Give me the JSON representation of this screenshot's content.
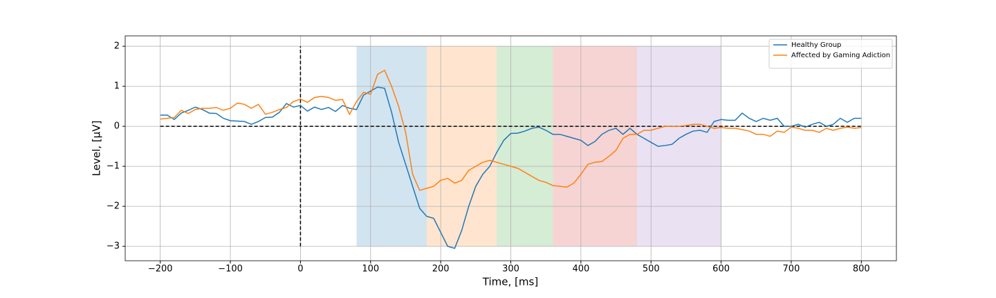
{
  "chart_data": {
    "type": "line",
    "xlabel": "Time, [ms]",
    "ylabel": "Level, [μV]",
    "xlim": [
      -250,
      850
    ],
    "ylim": [
      -3.36,
      2.26
    ],
    "xticks": [
      {
        "value": -200,
        "label": "−200"
      },
      {
        "value": -100,
        "label": "−100"
      },
      0,
      100,
      200,
      300,
      400,
      500,
      600,
      700,
      800
    ],
    "yticks": [
      {
        "value": -3,
        "label": "−3"
      },
      {
        "value": -2,
        "label": "−2"
      },
      {
        "value": -1,
        "label": "−1"
      },
      0,
      1,
      2
    ],
    "grid": true,
    "legend": "upper right",
    "band_ylim": [
      -3,
      2
    ],
    "bands": [
      {
        "from": 80,
        "to": 180,
        "color": "#1f77b4"
      },
      {
        "from": 180,
        "to": 280,
        "color": "#ff7f0e"
      },
      {
        "from": 280,
        "to": 360,
        "color": "#2ca02c"
      },
      {
        "from": 360,
        "to": 480,
        "color": "#d62728"
      },
      {
        "from": 480,
        "to": 600,
        "color": "#9467bd"
      }
    ],
    "hlines": [
      {
        "y": 0,
        "xmin": -200,
        "xmax": 800
      }
    ],
    "vlines": [
      {
        "x": 0,
        "ymin": -3,
        "ymax": 2
      }
    ],
    "x": [
      -200,
      -190,
      -180,
      -170,
      -160,
      -150,
      -140,
      -130,
      -120,
      -110,
      -100,
      -90,
      -80,
      -70,
      -60,
      -50,
      -40,
      -30,
      -20,
      -10,
      0,
      10,
      20,
      30,
      40,
      50,
      60,
      70,
      80,
      90,
      100,
      110,
      120,
      130,
      140,
      150,
      160,
      170,
      180,
      190,
      200,
      210,
      220,
      230,
      240,
      250,
      260,
      270,
      280,
      290,
      300,
      310,
      320,
      330,
      340,
      350,
      360,
      370,
      380,
      390,
      400,
      410,
      420,
      430,
      440,
      450,
      460,
      470,
      480,
      490,
      500,
      510,
      520,
      530,
      540,
      550,
      560,
      570,
      580,
      590,
      600,
      610,
      620,
      630,
      640,
      650,
      660,
      670,
      680,
      690,
      700,
      710,
      720,
      730,
      740,
      750,
      760,
      770,
      780,
      790,
      800
    ],
    "series": [
      {
        "name": "Healthy Group",
        "color": "#1f77b4",
        "values": [
          0.28,
          0.28,
          0.17,
          0.33,
          0.4,
          0.48,
          0.42,
          0.33,
          0.32,
          0.2,
          0.14,
          0.13,
          0.12,
          0.05,
          0.12,
          0.22,
          0.23,
          0.35,
          0.57,
          0.48,
          0.52,
          0.38,
          0.48,
          0.42,
          0.47,
          0.37,
          0.52,
          0.45,
          0.42,
          0.78,
          0.88,
          0.98,
          0.95,
          0.35,
          -0.4,
          -0.95,
          -1.5,
          -2.05,
          -2.25,
          -2.3,
          -2.65,
          -3.0,
          -3.05,
          -2.6,
          -2.0,
          -1.5,
          -1.2,
          -1.0,
          -0.65,
          -0.35,
          -0.18,
          -0.17,
          -0.12,
          -0.05,
          -0.02,
          -0.1,
          -0.2,
          -0.2,
          -0.25,
          -0.3,
          -0.35,
          -0.48,
          -0.38,
          -0.2,
          -0.1,
          -0.05,
          -0.2,
          -0.05,
          -0.2,
          -0.3,
          -0.4,
          -0.5,
          -0.48,
          -0.45,
          -0.3,
          -0.2,
          -0.12,
          -0.1,
          -0.15,
          0.12,
          0.17,
          0.15,
          0.15,
          0.33,
          0.2,
          0.12,
          0.2,
          0.15,
          0.2,
          0.0,
          0.0,
          0.05,
          -0.02,
          0.05,
          0.1,
          0.0,
          0.05,
          0.2,
          0.1,
          0.2,
          0.2
        ]
      },
      {
        "name": "Affected by Gaming Adiction",
        "color": "#ff7f0e",
        "values": [
          0.18,
          0.2,
          0.22,
          0.4,
          0.32,
          0.42,
          0.45,
          0.45,
          0.47,
          0.4,
          0.45,
          0.58,
          0.55,
          0.45,
          0.55,
          0.3,
          0.35,
          0.42,
          0.47,
          0.62,
          0.68,
          0.6,
          0.72,
          0.75,
          0.72,
          0.65,
          0.67,
          0.3,
          0.62,
          0.85,
          0.8,
          1.3,
          1.4,
          1.0,
          0.5,
          -0.15,
          -1.2,
          -1.6,
          -1.55,
          -1.5,
          -1.35,
          -1.3,
          -1.42,
          -1.35,
          -1.1,
          -1.0,
          -0.9,
          -0.85,
          -0.9,
          -0.95,
          -1.0,
          -1.05,
          -1.15,
          -1.25,
          -1.35,
          -1.4,
          -1.48,
          -1.5,
          -1.52,
          -1.42,
          -1.2,
          -0.95,
          -0.9,
          -0.88,
          -0.75,
          -0.6,
          -0.3,
          -0.2,
          -0.2,
          -0.1,
          -0.1,
          -0.05,
          0.0,
          0.0,
          0.0,
          0.02,
          0.05,
          0.05,
          0.0,
          -0.05,
          -0.03,
          -0.05,
          -0.05,
          -0.08,
          -0.12,
          -0.2,
          -0.2,
          -0.25,
          -0.12,
          -0.15,
          -0.02,
          -0.05,
          -0.1,
          -0.1,
          -0.15,
          -0.05,
          -0.1,
          -0.05,
          -0.02,
          -0.05,
          -0.03
        ]
      }
    ]
  }
}
